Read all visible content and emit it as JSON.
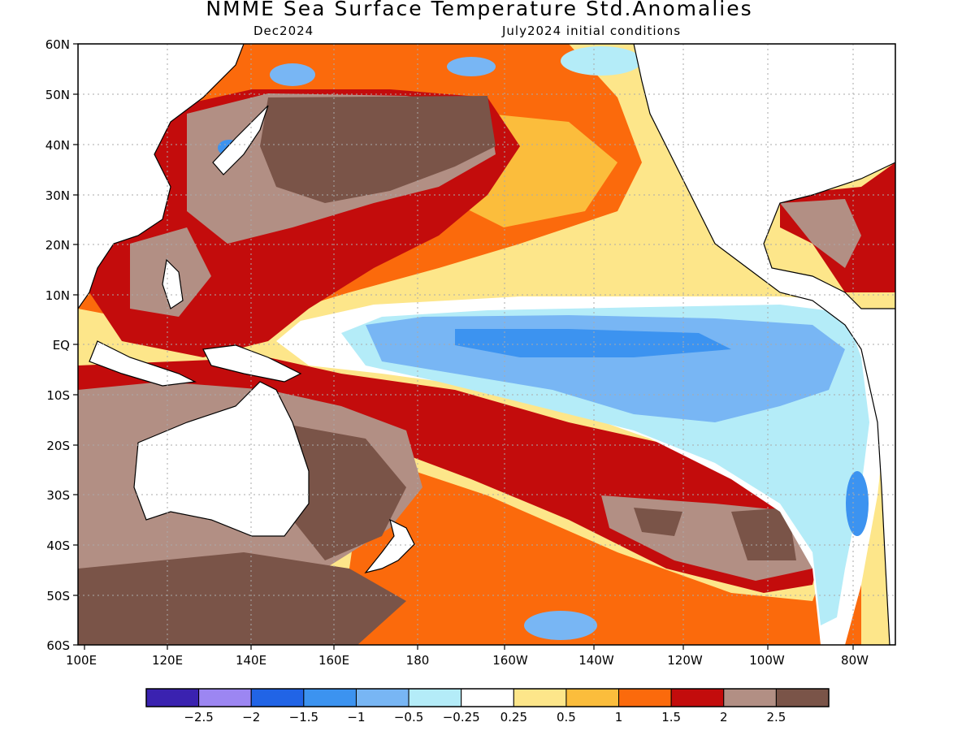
{
  "title": "NMME Sea Surface Temperature Std.Anomalies",
  "subtitle_left": "Dec2024",
  "subtitle_right": "July2024 initial conditions",
  "lat_labels": [
    "60N",
    "50N",
    "40N",
    "30N",
    "20N",
    "10N",
    "EQ",
    "10S",
    "20S",
    "30S",
    "40S",
    "50S",
    "60S"
  ],
  "lon_labels": [
    "100E",
    "120E",
    "140E",
    "160E",
    "180",
    "160W",
    "140W",
    "120W",
    "100W",
    "80W"
  ],
  "colorbar": {
    "colors": [
      "#3a22b0",
      "#9c86f2",
      "#2164e6",
      "#3c93f0",
      "#78b6f4",
      "#b4ecf8",
      "#ffffff",
      "#fde68a",
      "#fbbd3c",
      "#fb6a0c",
      "#c30c0c",
      "#b28f84",
      "#7a5448"
    ],
    "labels": [
      "−2.5",
      "−2",
      "−1.5",
      "−1",
      "−0.5",
      "−0.25",
      "0.25",
      "0.5",
      "1",
      "1.5",
      "2",
      "2.5"
    ]
  },
  "map": {
    "background_color": "#fde68a",
    "regions": [
      {
        "id": "north-pacific-gyre",
        "anomaly": 1.5,
        "color": "#fb6a0c"
      },
      {
        "id": "west-pacific-warm-pool",
        "anomaly": 2.0,
        "color": "#c30c0c"
      },
      {
        "id": "kuroshio-extension",
        "anomaly": 2.5,
        "color": "#7a5448"
      },
      {
        "id": "equatorial-cold-tongue",
        "anomaly": -1.0,
        "color": "#78b6f4"
      },
      {
        "id": "south-pacific-band",
        "anomaly": 1.5,
        "color": "#fb6a0c"
      },
      {
        "id": "tasman-sea",
        "anomaly": 2.5,
        "color": "#7a5448"
      },
      {
        "id": "gulf-of-alaska",
        "anomaly": 0.5,
        "color": "#fde68a"
      },
      {
        "id": "caribbean",
        "anomaly": 2.0,
        "color": "#c30c0c"
      }
    ]
  }
}
